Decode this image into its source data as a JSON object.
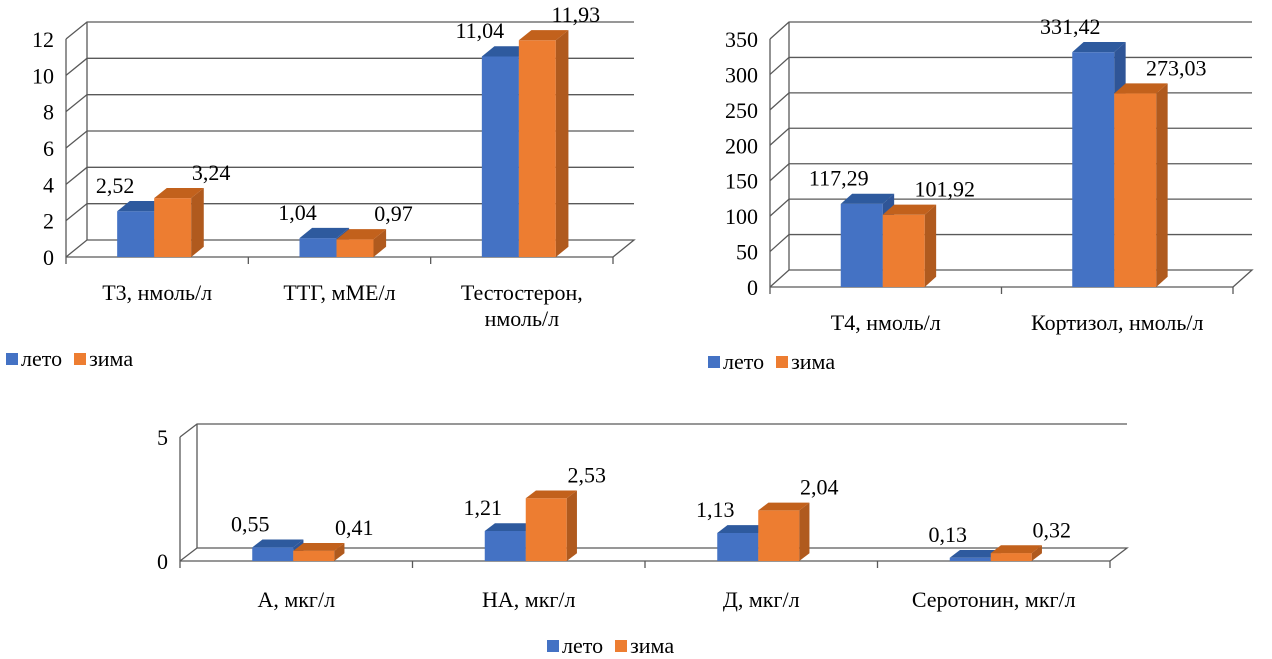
{
  "colors": {
    "summer": "#4472C4",
    "winter": "#ED7D31"
  },
  "chart_data": [
    {
      "type": "bar",
      "categories": [
        "Т3, нмоль/л",
        "ТТГ, мМЕ/л",
        "Тестостерон,\nнмоль/л"
      ],
      "series": [
        {
          "name": "лето",
          "values": [
            2.52,
            1.04,
            11.04
          ],
          "labels": [
            "2,52",
            "1,04",
            "11,04"
          ]
        },
        {
          "name": "зима",
          "values": [
            3.24,
            0.97,
            11.93
          ],
          "labels": [
            "3,24",
            "0,97",
            "11,93"
          ]
        }
      ],
      "yticks": [
        "0",
        "2",
        "4",
        "6",
        "8",
        "10",
        "12"
      ],
      "ylim": [
        0,
        12
      ],
      "grid": true,
      "legend": "bottom-left",
      "title": "",
      "xlabel": "",
      "ylabel": ""
    },
    {
      "type": "bar",
      "categories": [
        "Т4, нмоль/л",
        "Кортизол, нмоль/л"
      ],
      "series": [
        {
          "name": "лето",
          "values": [
            117.29,
            331.42
          ],
          "labels": [
            "117,29",
            "331,42"
          ]
        },
        {
          "name": "зима",
          "values": [
            101.92,
            273.03
          ],
          "labels": [
            "101,92",
            "273,03"
          ]
        }
      ],
      "yticks": [
        "0",
        "50",
        "100",
        "150",
        "200",
        "250",
        "300",
        "350"
      ],
      "ylim": [
        0,
        350
      ],
      "grid": true,
      "legend": "bottom-left",
      "title": "",
      "xlabel": "",
      "ylabel": ""
    },
    {
      "type": "bar",
      "categories": [
        "А, мкг/л",
        "НА, мкг/л",
        "Д, мкг/л",
        "Серотонин, мкг/л"
      ],
      "series": [
        {
          "name": "лето",
          "values": [
            0.55,
            1.21,
            1.13,
            0.13
          ],
          "labels": [
            "0,55",
            "1,21",
            "1,13",
            "0,13"
          ]
        },
        {
          "name": "зима",
          "values": [
            0.41,
            2.53,
            2.04,
            0.32
          ],
          "labels": [
            "0,41",
            "2,53",
            "2,04",
            "0,32"
          ]
        }
      ],
      "yticks": [
        "0",
        "5"
      ],
      "ylim": [
        0,
        5
      ],
      "grid": true,
      "legend": "bottom-center",
      "title": "",
      "xlabel": "",
      "ylabel": ""
    }
  ],
  "legend_labels": {
    "summer": "лето",
    "winter": "зима"
  }
}
